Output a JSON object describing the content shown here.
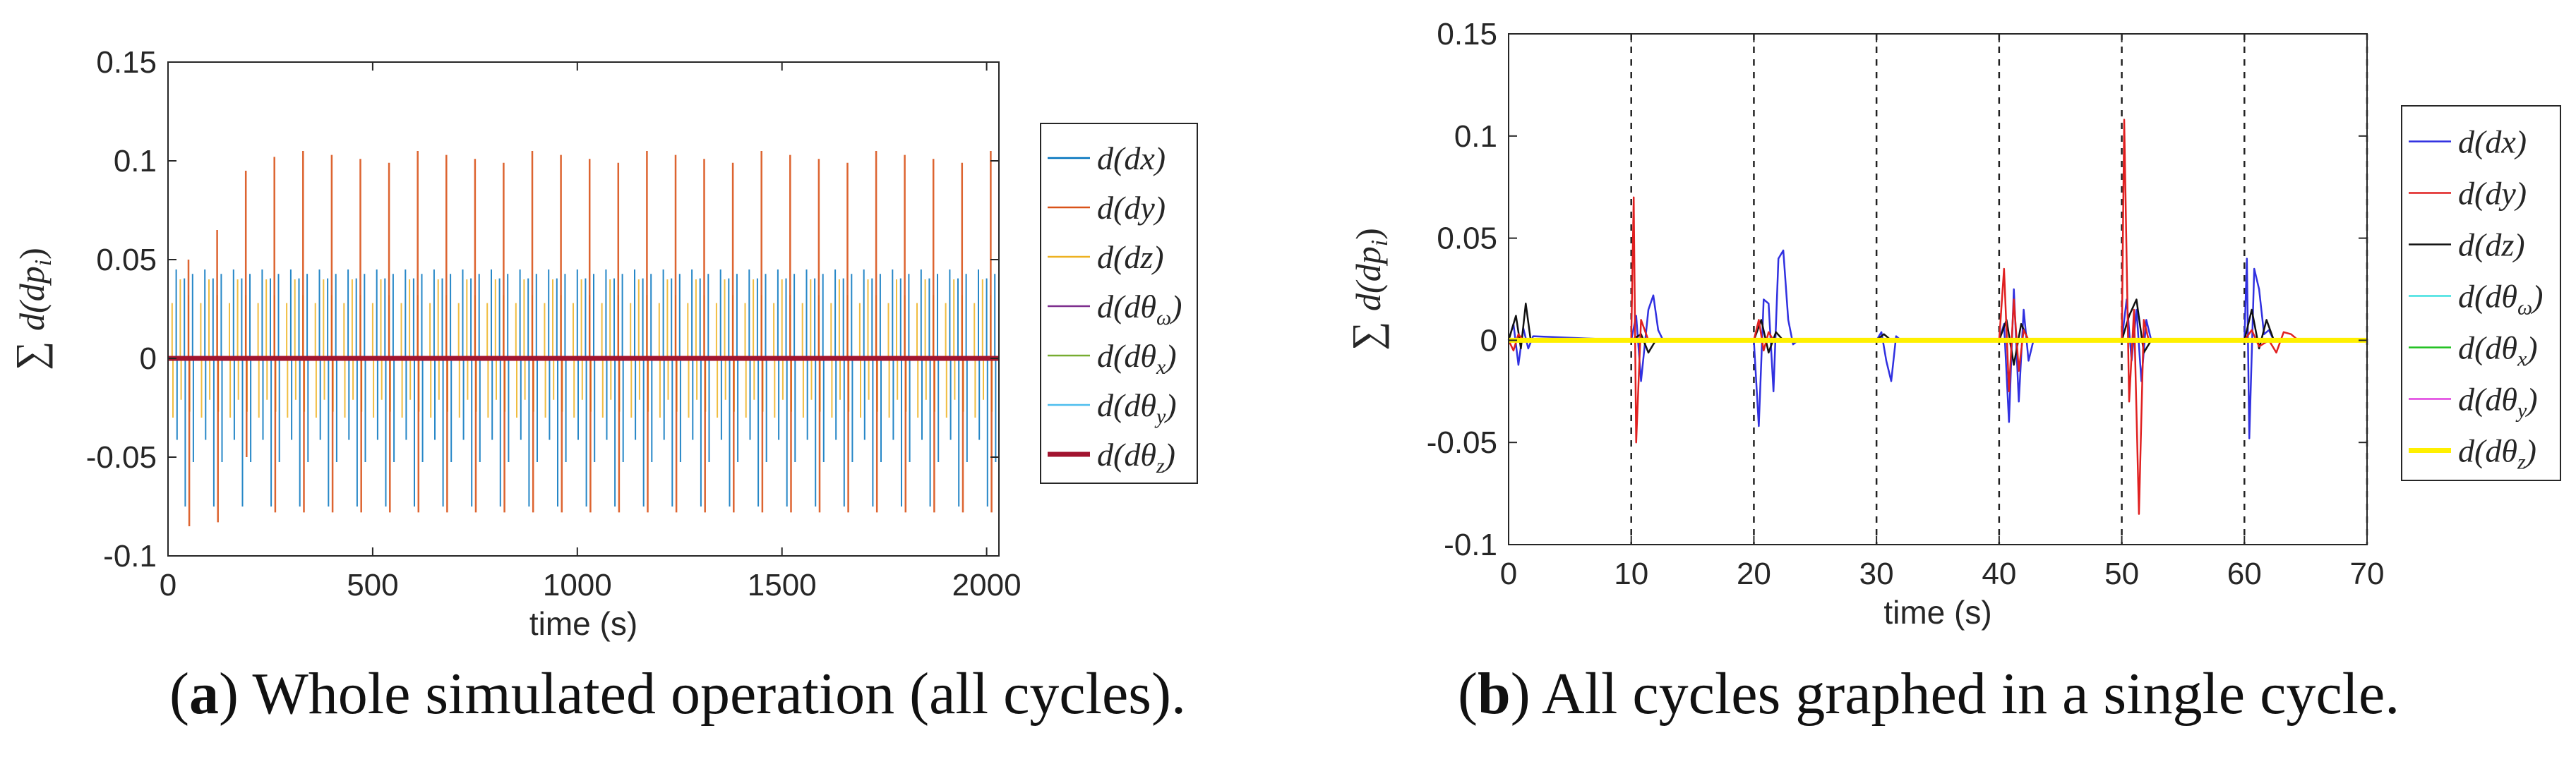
{
  "chart_data": [
    {
      "type": "line",
      "panel_label": "a",
      "caption_text": "Whole simulated operation (all cycles).",
      "xlabel": "time (s)",
      "ylabel": "∑ d(dp_i)",
      "xlim": [
        0,
        2030
      ],
      "ylim": [
        -0.1,
        0.15
      ],
      "xticks": [
        0,
        500,
        1000,
        1500,
        2000
      ],
      "yticks": [
        0.15,
        0.1,
        0.05,
        0,
        -0.05,
        -0.1
      ],
      "xtick_labels": [
        "0",
        "500",
        "1000",
        "1500",
        "2000"
      ],
      "ytick_labels": [
        "0.15",
        "0.1",
        "0.05",
        "0",
        "-0.05",
        "-0.1"
      ],
      "grid": false,
      "legend_position": "outside-right",
      "cycle_period": 70,
      "series": [
        {
          "name": "d(dx)",
          "color": "#0072BD",
          "pattern": "spikes",
          "amplitude_pos": 0.045,
          "amplitude_neg": -0.075,
          "first_cycle_peak": 0.045
        },
        {
          "name": "d(dy)",
          "color": "#D95319",
          "pattern": "spikes",
          "amplitude_pos": 0.105,
          "amplitude_neg": -0.078,
          "first_cycle_peak": 0.05,
          "first_cycle_min": -0.085
        },
        {
          "name": "d(dz)",
          "color": "#EDB120",
          "pattern": "spikes",
          "amplitude_pos": 0.04,
          "amplitude_neg": -0.03
        },
        {
          "name": "d(dθω)",
          "color": "#7E2F8E",
          "pattern": "flat",
          "value": 0
        },
        {
          "name": "d(dθx)",
          "color": "#77AC30",
          "pattern": "flat",
          "value": 0
        },
        {
          "name": "d(dθy)",
          "color": "#4DBEEE",
          "pattern": "flat",
          "value": 0
        },
        {
          "name": "d(dθz)",
          "color": "#A2142F",
          "pattern": "flat",
          "value": 0
        }
      ],
      "legend": [
        {
          "base": "d(d",
          "var": "x",
          "sub": "",
          "tail": ")",
          "color": "#0072BD"
        },
        {
          "base": "d(d",
          "var": "y",
          "sub": "",
          "tail": ")",
          "color": "#D95319"
        },
        {
          "base": "d(d",
          "var": "z",
          "sub": "",
          "tail": ")",
          "color": "#EDB120"
        },
        {
          "base": "d(d",
          "var": "θ",
          "sub": "ω",
          "tail": ")",
          "color": "#7E2F8E"
        },
        {
          "base": "d(d",
          "var": "θ",
          "sub": "x",
          "tail": ")",
          "color": "#77AC30"
        },
        {
          "base": "d(d",
          "var": "θ",
          "sub": "y",
          "tail": ")",
          "color": "#4DBEEE"
        },
        {
          "base": "d(d",
          "var": "θ",
          "sub": "z",
          "tail": ")",
          "color": "#A2142F",
          "thick": true
        }
      ]
    },
    {
      "type": "line",
      "panel_label": "b",
      "caption_text": "All cycles graphed in a single cycle.",
      "xlabel": "time (s)",
      "ylabel": "∑ d(dp_i)",
      "xlim": [
        0,
        70
      ],
      "ylim": [
        -0.1,
        0.15
      ],
      "xticks": [
        0,
        10,
        20,
        30,
        40,
        50,
        60,
        70
      ],
      "yticks": [
        0.15,
        0.1,
        0.05,
        0,
        -0.05,
        -0.1
      ],
      "xtick_labels": [
        "0",
        "10",
        "20",
        "30",
        "40",
        "50",
        "60",
        "70"
      ],
      "ytick_labels": [
        "0.15",
        "0.1",
        "0.05",
        "0",
        "-0.05",
        "-0.1"
      ],
      "grid": false,
      "legend_position": "outside-right",
      "vertical_dashed_lines_x": [
        10,
        20,
        30,
        40,
        50,
        60,
        70
      ],
      "series": [
        {
          "name": "d(dx)",
          "color": "#3030E0",
          "points": [
            [
              0,
              0
            ],
            [
              0.4,
              0.008
            ],
            [
              0.8,
              -0.012
            ],
            [
              1.2,
              0.006
            ],
            [
              1.6,
              -0.004
            ],
            [
              2.0,
              0.002
            ],
            [
              10,
              0
            ],
            [
              10.4,
              0.012
            ],
            [
              10.8,
              -0.02
            ],
            [
              11.4,
              0.015
            ],
            [
              11.8,
              0.022
            ],
            [
              12.2,
              0.005
            ],
            [
              12.6,
              0
            ],
            [
              20,
              0
            ],
            [
              20.4,
              -0.042
            ],
            [
              20.8,
              0.02
            ],
            [
              21.2,
              0.018
            ],
            [
              21.6,
              -0.025
            ],
            [
              22,
              0.04
            ],
            [
              22.4,
              0.044
            ],
            [
              22.8,
              0.01
            ],
            [
              23.2,
              -0.002
            ],
            [
              23.6,
              0
            ],
            [
              30,
              0
            ],
            [
              30.4,
              0.004
            ],
            [
              30.8,
              -0.01
            ],
            [
              31.2,
              -0.02
            ],
            [
              31.6,
              0.002
            ],
            [
              32,
              0
            ],
            [
              40,
              0
            ],
            [
              40.4,
              0.008
            ],
            [
              40.8,
              -0.04
            ],
            [
              41.2,
              0.025
            ],
            [
              41.6,
              -0.03
            ],
            [
              42,
              0.015
            ],
            [
              42.4,
              -0.01
            ],
            [
              42.8,
              0
            ],
            [
              50,
              0
            ],
            [
              50.4,
              0.02
            ],
            [
              50.8,
              -0.01
            ],
            [
              51.2,
              0.015
            ],
            [
              51.6,
              -0.02
            ],
            [
              52,
              0.01
            ],
            [
              52.4,
              0
            ],
            [
              60,
              0
            ],
            [
              60.2,
              0.04
            ],
            [
              60.4,
              -0.048
            ],
            [
              60.8,
              0.035
            ],
            [
              61.2,
              0.025
            ],
            [
              61.6,
              0.003
            ],
            [
              62,
              0.005
            ],
            [
              62.4,
              0
            ]
          ]
        },
        {
          "name": "d(dy)",
          "color": "#E02020",
          "points": [
            [
              0,
              0
            ],
            [
              0.4,
              -0.005
            ],
            [
              0.8,
              0.003
            ],
            [
              1.2,
              0
            ],
            [
              10,
              0
            ],
            [
              10.2,
              0.07
            ],
            [
              10.4,
              -0.05
            ],
            [
              10.8,
              0.01
            ],
            [
              11.4,
              0
            ],
            [
              20,
              0
            ],
            [
              20.4,
              0.01
            ],
            [
              20.8,
              -0.005
            ],
            [
              21.2,
              0.004
            ],
            [
              21.6,
              0
            ],
            [
              40,
              0
            ],
            [
              40.4,
              0.035
            ],
            [
              40.8,
              -0.025
            ],
            [
              41.2,
              0.02
            ],
            [
              41.6,
              -0.015
            ],
            [
              42,
              0.005
            ],
            [
              42.4,
              0
            ],
            [
              50,
              0
            ],
            [
              50.2,
              0.108
            ],
            [
              50.6,
              -0.03
            ],
            [
              51,
              0.015
            ],
            [
              51.4,
              -0.085
            ],
            [
              51.8,
              0.01
            ],
            [
              52.2,
              0
            ],
            [
              60,
              0
            ],
            [
              60.6,
              0.005
            ],
            [
              61.2,
              -0.003
            ],
            [
              62,
              0
            ],
            [
              62.6,
              -0.006
            ],
            [
              63.2,
              0.004
            ],
            [
              63.8,
              0.003
            ],
            [
              64.4,
              0
            ]
          ]
        },
        {
          "name": "d(dz)",
          "color": "#111111",
          "points": [
            [
              0,
              0
            ],
            [
              0.6,
              0.012
            ],
            [
              1.0,
              -0.004
            ],
            [
              1.4,
              0.018
            ],
            [
              1.8,
              0
            ],
            [
              10,
              0
            ],
            [
              10.8,
              0.003
            ],
            [
              11.4,
              -0.006
            ],
            [
              12,
              0
            ],
            [
              20,
              0
            ],
            [
              20.6,
              0.01
            ],
            [
              21.2,
              -0.006
            ],
            [
              21.8,
              0.004
            ],
            [
              22.4,
              0
            ],
            [
              30,
              0
            ],
            [
              30.6,
              0.003
            ],
            [
              31.2,
              0
            ],
            [
              40,
              0
            ],
            [
              40.6,
              0.01
            ],
            [
              41.2,
              -0.012
            ],
            [
              41.8,
              0.008
            ],
            [
              42.4,
              0
            ],
            [
              50,
              0
            ],
            [
              50.6,
              0.012
            ],
            [
              51.2,
              0.02
            ],
            [
              51.8,
              -0.006
            ],
            [
              52.4,
              0
            ],
            [
              60,
              0
            ],
            [
              60.6,
              0.015
            ],
            [
              61.2,
              -0.004
            ],
            [
              61.8,
              0.01
            ],
            [
              62.4,
              0
            ]
          ]
        },
        {
          "name": "d(dθω)",
          "color": "#40E0E0",
          "points": [
            [
              0,
              0
            ],
            [
              70,
              0
            ]
          ]
        },
        {
          "name": "d(dθx)",
          "color": "#20C020",
          "points": [
            [
              0,
              0
            ],
            [
              70,
              0
            ]
          ]
        },
        {
          "name": "d(dθy)",
          "color": "#E040E0",
          "points": [
            [
              0,
              0
            ],
            [
              70,
              0
            ]
          ]
        },
        {
          "name": "d(dθz)",
          "color": "#FFF000",
          "points": [
            [
              0,
              0
            ],
            [
              70,
              0
            ]
          ],
          "thick": true
        }
      ],
      "legend": [
        {
          "base": "d(d",
          "var": "x",
          "sub": "",
          "tail": ")",
          "color": "#3030E0"
        },
        {
          "base": "d(d",
          "var": "y",
          "sub": "",
          "tail": ")",
          "color": "#E02020"
        },
        {
          "base": "d(d",
          "var": "z",
          "sub": "",
          "tail": ")",
          "color": "#111111"
        },
        {
          "base": "d(d",
          "var": "θ",
          "sub": "ω",
          "tail": ")",
          "color": "#40E0E0"
        },
        {
          "base": "d(d",
          "var": "θ",
          "sub": "x",
          "tail": ")",
          "color": "#20C020"
        },
        {
          "base": "d(d",
          "var": "θ",
          "sub": "y",
          "tail": ")",
          "color": "#E040E0"
        },
        {
          "base": "d(d",
          "var": "θ",
          "sub": "z",
          "tail": ")",
          "color": "#FFF000",
          "thick": true
        }
      ]
    }
  ]
}
